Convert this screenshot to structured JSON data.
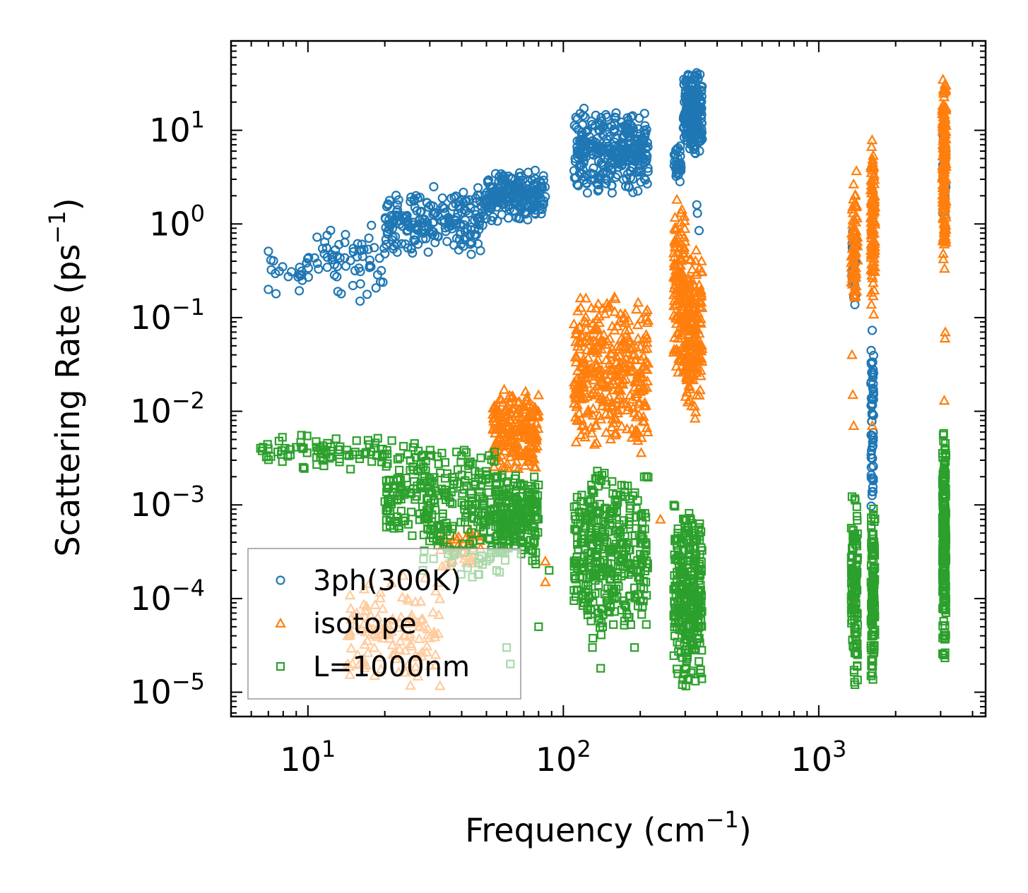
{
  "chart_data": {
    "type": "scatter",
    "xscale": "log",
    "yscale": "log",
    "xlim": [
      5,
      4500
    ],
    "ylim": [
      5.5e-06,
      90
    ],
    "xlabel": "Frequency (cm⁻¹)",
    "ylabel": "Scattering Rate (ps⁻¹)",
    "xlabel_parts": {
      "base": "Frequency (cm",
      "sup": "−1",
      "tail": ")"
    },
    "ylabel_parts": {
      "base": "Scattering Rate (ps",
      "sup": "−1",
      "tail": ")"
    },
    "x_ticks": [
      {
        "value": 10,
        "base": "10",
        "exp": "1"
      },
      {
        "value": 100,
        "base": "10",
        "exp": "2"
      },
      {
        "value": 1000,
        "base": "10",
        "exp": "3"
      }
    ],
    "y_ticks": [
      {
        "value": 10,
        "base": "10",
        "exp": "1"
      },
      {
        "value": 1,
        "base": "10",
        "exp": "0"
      },
      {
        "value": 0.1,
        "base": "10",
        "exp": "−1"
      },
      {
        "value": 0.01,
        "base": "10",
        "exp": "−2"
      },
      {
        "value": 0.001,
        "base": "10",
        "exp": "−3"
      },
      {
        "value": 0.0001,
        "base": "10",
        "exp": "−4"
      },
      {
        "value": 1e-05,
        "base": "10",
        "exp": "−5"
      }
    ],
    "legend_position": "bottom-left",
    "series": [
      {
        "name": "3ph(300K)",
        "color": "#1f77b4",
        "marker": "circle",
        "clusters": [
          {
            "x": [
              6.5,
              10
            ],
            "y": [
              0.15,
              0.7
            ],
            "n": 18
          },
          {
            "x": [
              10,
              20
            ],
            "y": [
              0.15,
              1.2
            ],
            "n": 60
          },
          {
            "x": [
              20,
              50
            ],
            "y": [
              0.45,
              2.6
            ],
            "n": 220
          },
          {
            "x": [
              50,
              85
            ],
            "y": [
              1.0,
              4.0
            ],
            "n": 200
          },
          {
            "x": [
              110,
              215
            ],
            "y": [
              2.0,
              18
            ],
            "n": 320
          },
          {
            "x": [
              270,
              290
            ],
            "y": [
              2.5,
              8
            ],
            "n": 30
          },
          {
            "x": [
              295,
              350
            ],
            "y": [
              5,
              45
            ],
            "n": 220
          },
          {
            "x": [
              1350,
              1400
            ],
            "y": [
              0.1,
              1.0
            ],
            "n": 30
          },
          {
            "x": [
              1600,
              1640
            ],
            "y": [
              0.0007,
              0.1
            ],
            "n": 60
          },
          {
            "x": [
              3050,
              3150
            ],
            "y": [
              1,
              10
            ],
            "n": 20
          }
        ],
        "points": [
          [
            340,
            0.85
          ],
          [
            335,
            1.3
          ],
          [
            333,
            1.6
          ],
          [
            16,
            0.15
          ],
          [
            13.5,
            0.18
          ],
          [
            7.5,
            0.18
          ],
          [
            7,
            0.2
          ],
          [
            15,
            0.22
          ],
          [
            9.5,
            0.25
          ],
          [
            11,
            0.33
          ]
        ]
      },
      {
        "name": "isotope",
        "color": "#ff7f0e",
        "marker": "triangle",
        "clusters": [
          {
            "x": [
              14,
              33
            ],
            "y": [
              1e-05,
              0.0002
            ],
            "n": 130
          },
          {
            "x": [
              33,
              48
            ],
            "y": [
              0.0002,
              0.0006
            ],
            "n": 40
          },
          {
            "x": [
              53,
              80
            ],
            "y": [
              0.002,
              0.02
            ],
            "n": 220
          },
          {
            "x": [
              110,
              215
            ],
            "y": [
              0.003,
              0.2
            ],
            "n": 360
          },
          {
            "x": [
              270,
              300
            ],
            "y": [
              0.02,
              2.0
            ],
            "n": 140
          },
          {
            "x": [
              300,
              350
            ],
            "y": [
              0.008,
              0.6
            ],
            "n": 180
          },
          {
            "x": [
              1340,
              1420
            ],
            "y": [
              0.1,
              4.0
            ],
            "n": 80
          },
          {
            "x": [
              1600,
              1660
            ],
            "y": [
              0.1,
              10
            ],
            "n": 120
          },
          {
            "x": [
              3050,
              3150
            ],
            "y": [
              0.3,
              45
            ],
            "n": 200
          }
        ],
        "points": [
          [
            137,
            0.14
          ],
          [
            85,
            0.00025
          ],
          [
            85,
            0.00015
          ],
          [
            1350,
            0.04
          ],
          [
            1360,
            0.015
          ],
          [
            1370,
            0.007
          ],
          [
            1620,
            0.007
          ],
          [
            3100,
            0.013
          ],
          [
            3120,
            0.06
          ],
          [
            3130,
            0.07
          ],
          [
            240,
            0.0007
          ]
        ]
      },
      {
        "name": "L=1000nm",
        "color": "#2ca02c",
        "marker": "square",
        "clusters": [
          {
            "x": [
              6.5,
              20
            ],
            "y": [
              0.0022,
              0.006
            ],
            "n": 80
          },
          {
            "x": [
              20,
              55
            ],
            "y": [
              0.0004,
              0.005
            ],
            "n": 240
          },
          {
            "x": [
              28,
              60
            ],
            "y": [
              0.00015,
              0.0012
            ],
            "n": 90
          },
          {
            "x": [
              55,
              80
            ],
            "y": [
              0.0002,
              0.0025
            ],
            "n": 220
          },
          {
            "x": [
              110,
              215
            ],
            "y": [
              3e-05,
              0.003
            ],
            "n": 380
          },
          {
            "x": [
              270,
              350
            ],
            "y": [
              1e-05,
              0.0014
            ],
            "n": 300
          },
          {
            "x": [
              1340,
              1420
            ],
            "y": [
              1e-05,
              0.002
            ],
            "n": 120
          },
          {
            "x": [
              1600,
              1660
            ],
            "y": [
              1e-05,
              0.001
            ],
            "n": 120
          },
          {
            "x": [
              3050,
              3150
            ],
            "y": [
              2e-05,
              0.008
            ],
            "n": 220
          }
        ],
        "points": [
          [
            62,
            2e-05
          ],
          [
            80,
            5e-05
          ],
          [
            60,
            3e-05
          ],
          [
            88,
            0.0002
          ],
          [
            140,
            1.8e-05
          ],
          [
            130,
            3e-05
          ],
          [
            190,
            3e-05
          ]
        ]
      }
    ]
  }
}
